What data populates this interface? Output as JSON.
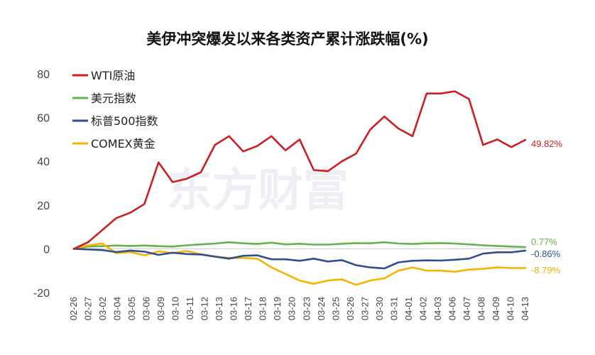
{
  "watermark": "东方财富",
  "chart_data": {
    "type": "line",
    "title": "美伊冲突爆发以来各类资产累计涨跌幅(%)",
    "xlabel": "",
    "ylabel": "",
    "ylim": [
      -20,
      80
    ],
    "yticks": [
      "80",
      "60",
      "40",
      "20",
      "0",
      "-20"
    ],
    "grid": false,
    "legend_position": "top-left",
    "x": [
      "02-26",
      "02-27",
      "03-02",
      "03-03",
      "03-04",
      "03-05",
      "03-06",
      "03-09",
      "03-10",
      "03-11",
      "03-12",
      "03-13",
      "03-16",
      "03-17",
      "03-18",
      "03-19",
      "03-20",
      "03-23",
      "03-24",
      "03-25",
      "03-26",
      "03-27",
      "03-30",
      "03-31",
      "04-01",
      "04-02",
      "04-03",
      "04-06",
      "04-07",
      "04-08",
      "04-09",
      "04-10",
      "04-13"
    ],
    "x_tick_labels": [
      "02-26",
      "02-27",
      "03-02",
      "03-04",
      "03-05",
      "03-06",
      "03-09",
      "03-10",
      "03-11",
      "03-12",
      "03-13",
      "03-16",
      "03-17",
      "03-18",
      "03-19",
      "03-20",
      "03-23",
      "03-24",
      "03-25",
      "03-26",
      "03-27",
      "03-30",
      "03-31",
      "04-01",
      "04-02",
      "04-03",
      "04-06",
      "04-07",
      "04-08",
      "04-09",
      "04-10",
      "04-13"
    ],
    "series": [
      {
        "name": "WTI原油",
        "color": "#cc1f1f",
        "end_label": "49.82%",
        "values": [
          0,
          3,
          8.5,
          14,
          16.5,
          20.5,
          39.5,
          30.5,
          32,
          35,
          47.5,
          51.5,
          44.5,
          47,
          51.5,
          45,
          50,
          36,
          35.5,
          40,
          43.5,
          54.5,
          60.5,
          55,
          51.5,
          71,
          71,
          72,
          68.5,
          47.5,
          50,
          46.5,
          49.82
        ]
      },
      {
        "name": "美元指数",
        "color": "#6ab04c",
        "end_label": "0.77%",
        "values": [
          0,
          1,
          1.2,
          1.5,
          1.3,
          1.5,
          1.2,
          1.0,
          1.6,
          2.0,
          2.4,
          3.0,
          2.5,
          2.2,
          2.8,
          2.0,
          2.3,
          1.9,
          1.9,
          2.3,
          2.6,
          2.5,
          3.0,
          2.4,
          2.2,
          2.5,
          2.6,
          2.4,
          2.0,
          1.6,
          1.3,
          1.0,
          0.77
        ]
      },
      {
        "name": "标普500指数",
        "color": "#2f4f8f",
        "end_label": "-0.86%",
        "values": [
          0,
          -0.3,
          -0.6,
          -1.5,
          -0.8,
          -1.3,
          -2.8,
          -1.8,
          -2.4,
          -2.6,
          -3.6,
          -4.5,
          -3.2,
          -3.0,
          -4.8,
          -4.8,
          -5.5,
          -4.5,
          -5.8,
          -5.2,
          -7.5,
          -8.5,
          -9.0,
          -6.2,
          -5.5,
          -5.3,
          -5.4,
          -5.0,
          -4.5,
          -2.2,
          -1.6,
          -1.6,
          -0.86
        ]
      },
      {
        "name": "COMEX黄金",
        "color": "#f4b400",
        "end_label": "-8.79%",
        "values": [
          0,
          1.5,
          2.5,
          -2.0,
          -1.5,
          -3.0,
          -1.2,
          -2.0,
          -1.0,
          -2.5,
          -3.5,
          -4.2,
          -4.2,
          -4.5,
          -8.5,
          -11.5,
          -14.5,
          -16.0,
          -14.5,
          -14.0,
          -16.5,
          -14.5,
          -13.5,
          -10.0,
          -8.5,
          -10.0,
          -10.0,
          -10.5,
          -9.5,
          -9.2,
          -8.5,
          -8.8,
          -8.79
        ]
      }
    ]
  }
}
